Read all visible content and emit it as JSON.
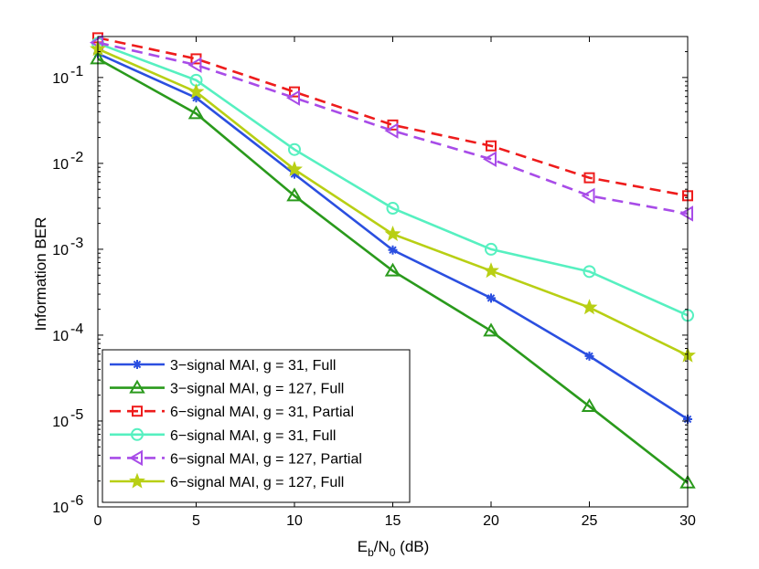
{
  "chart_data": {
    "type": "line",
    "title": "",
    "xlabel_main": "E",
    "xlabel_sub1": "b",
    "xlabel_mid": "/N",
    "xlabel_sub2": "0",
    "xlabel_tail": " (dB)",
    "ylabel": "Information BER",
    "x": [
      0,
      5,
      10,
      15,
      20,
      25,
      30
    ],
    "xlim": [
      0,
      30
    ],
    "ylim": [
      1e-06,
      0.3
    ],
    "yscale": "log",
    "grid": false,
    "legend_position": "bottom-left",
    "x_tick_labels": [
      "0",
      "5",
      "10",
      "15",
      "20",
      "25",
      "30"
    ],
    "y_ticks": [
      {
        "base": "10",
        "exp": "-6"
      },
      {
        "base": "10",
        "exp": "-5"
      },
      {
        "base": "10",
        "exp": "-4"
      },
      {
        "base": "10",
        "exp": "-3"
      },
      {
        "base": "10",
        "exp": "-2"
      },
      {
        "base": "10",
        "exp": "-1"
      }
    ],
    "series": [
      {
        "name": "3−signal MAI, g = 31, Full",
        "color": "#2b4fe0",
        "dash": "solid",
        "marker": "asterisk",
        "values": [
          0.19,
          0.058,
          0.0075,
          0.00098,
          0.00027,
          5.7e-05,
          1.05e-05
        ]
      },
      {
        "name": "3−signal MAI, g = 127, Full",
        "color": "#2a9a1c",
        "dash": "solid",
        "marker": "triangle-up",
        "values": [
          0.165,
          0.038,
          0.0042,
          0.00056,
          0.000112,
          1.48e-05,
          1.9e-06
        ]
      },
      {
        "name": "6−signal MAI, g = 31, Partial",
        "color": "#ee1c1c",
        "dash": "dashed",
        "marker": "square",
        "values": [
          0.29,
          0.165,
          0.068,
          0.028,
          0.016,
          0.0068,
          0.0042
        ]
      },
      {
        "name": "6−signal MAI, g = 31, Full",
        "color": "#56f0c0",
        "dash": "solid",
        "marker": "circle",
        "values": [
          0.25,
          0.093,
          0.0145,
          0.003,
          0.001,
          0.00055,
          0.00017
        ]
      },
      {
        "name": "6−signal MAI, g = 127, Partial",
        "color": "#a84ce8",
        "dash": "dashed",
        "marker": "triangle-left",
        "values": [
          0.255,
          0.14,
          0.058,
          0.024,
          0.0112,
          0.0042,
          0.0026
        ]
      },
      {
        "name": "6−signal MAI, g = 127, Full",
        "color": "#b8cf14",
        "dash": "solid",
        "marker": "star",
        "values": [
          0.215,
          0.068,
          0.0085,
          0.0015,
          0.00056,
          0.00021,
          5.8e-05
        ]
      }
    ]
  }
}
